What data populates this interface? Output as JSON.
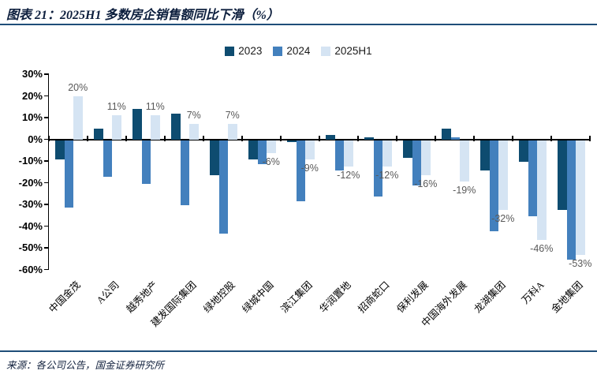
{
  "header": {
    "title": "图表 21：2025H1 多数房企销售额同比下滑（%）"
  },
  "legend": {
    "items": [
      {
        "label": "2023",
        "color": "#0E4C70"
      },
      {
        "label": "2024",
        "color": "#4380BD"
      },
      {
        "label": "2025H1",
        "color": "#D5E4F3"
      }
    ]
  },
  "chart_data": {
    "type": "bar",
    "title": "2025H1 多数房企销售额同比下滑（%）",
    "categories": [
      "中国金茂",
      "A公司",
      "越秀地产",
      "建发国际集团",
      "绿地控股",
      "绿城中国",
      "滨江集团",
      "华润置地",
      "招商蛇口",
      "保利发展",
      "中国海外发展",
      "龙湖集团",
      "万科A",
      "金地集团"
    ],
    "series": [
      {
        "name": "2023",
        "color": "#0E4C70",
        "values": [
          -9,
          5,
          14,
          12,
          -16,
          -9,
          -1,
          2,
          1,
          -8,
          5,
          -14,
          -10,
          -32
        ]
      },
      {
        "name": "2024",
        "color": "#4380BD",
        "values": [
          -31,
          -17,
          -20,
          -30,
          -43,
          -11,
          -28,
          -14,
          -26,
          -21,
          1,
          -42,
          -35,
          -55
        ]
      },
      {
        "name": "2025H1",
        "color": "#D5E4F3",
        "values": [
          20,
          11,
          11,
          7,
          7,
          -6,
          -9,
          -12,
          -12,
          -16,
          -19,
          -32,
          -46,
          -53
        ]
      }
    ],
    "value_labels": {
      "labeled_series": "2025H1",
      "labels": [
        "20%",
        "11%",
        "11%",
        "7%",
        "7%",
        "-6%",
        "-9%",
        "-12%",
        "-12%",
        "-16%",
        "-19%",
        "-32%",
        "-46%",
        "-53%"
      ]
    },
    "y_axis": {
      "ticks": [
        "30%",
        "20%",
        "10%",
        "0%",
        "-10%",
        "-20%",
        "-30%",
        "-40%",
        "-50%",
        "-60%"
      ],
      "max": 30,
      "min": -60,
      "step": 10
    },
    "grid": false,
    "legend_position": "top-center"
  },
  "footer": {
    "source": "来源：各公司公告，国金证券研究所"
  },
  "style": {
    "accent_navy": "#1F4E79",
    "value_label_gray": "#595959",
    "axis_black": "#000000",
    "background": "#FFFFFF"
  }
}
